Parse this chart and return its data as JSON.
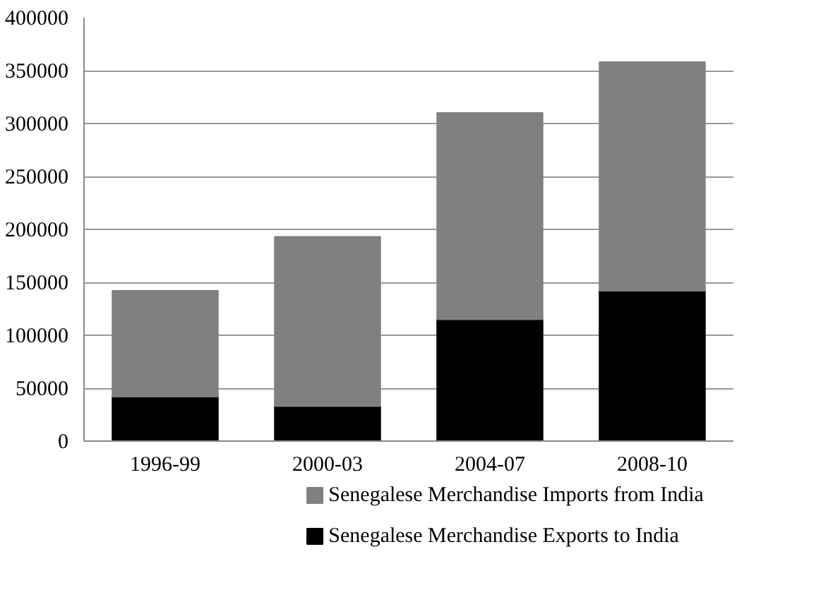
{
  "chart_data": {
    "type": "bar",
    "stacked": true,
    "categories": [
      "1996-99",
      "2000-03",
      "2004-07",
      "2008-10"
    ],
    "series": [
      {
        "name": "Senegalese Merchandise Exports to India",
        "color": "#000000",
        "values": [
          42000,
          33000,
          115000,
          142000
        ]
      },
      {
        "name": "Senegalese Merchandise Imports from India",
        "color": "#808080",
        "values": [
          100000,
          160000,
          195000,
          216000
        ]
      }
    ],
    "ylim": [
      0,
      400000
    ],
    "yticks": [
      0,
      50000,
      100000,
      150000,
      200000,
      250000,
      300000,
      350000,
      400000
    ],
    "grid": "y",
    "legend": "bottom"
  }
}
